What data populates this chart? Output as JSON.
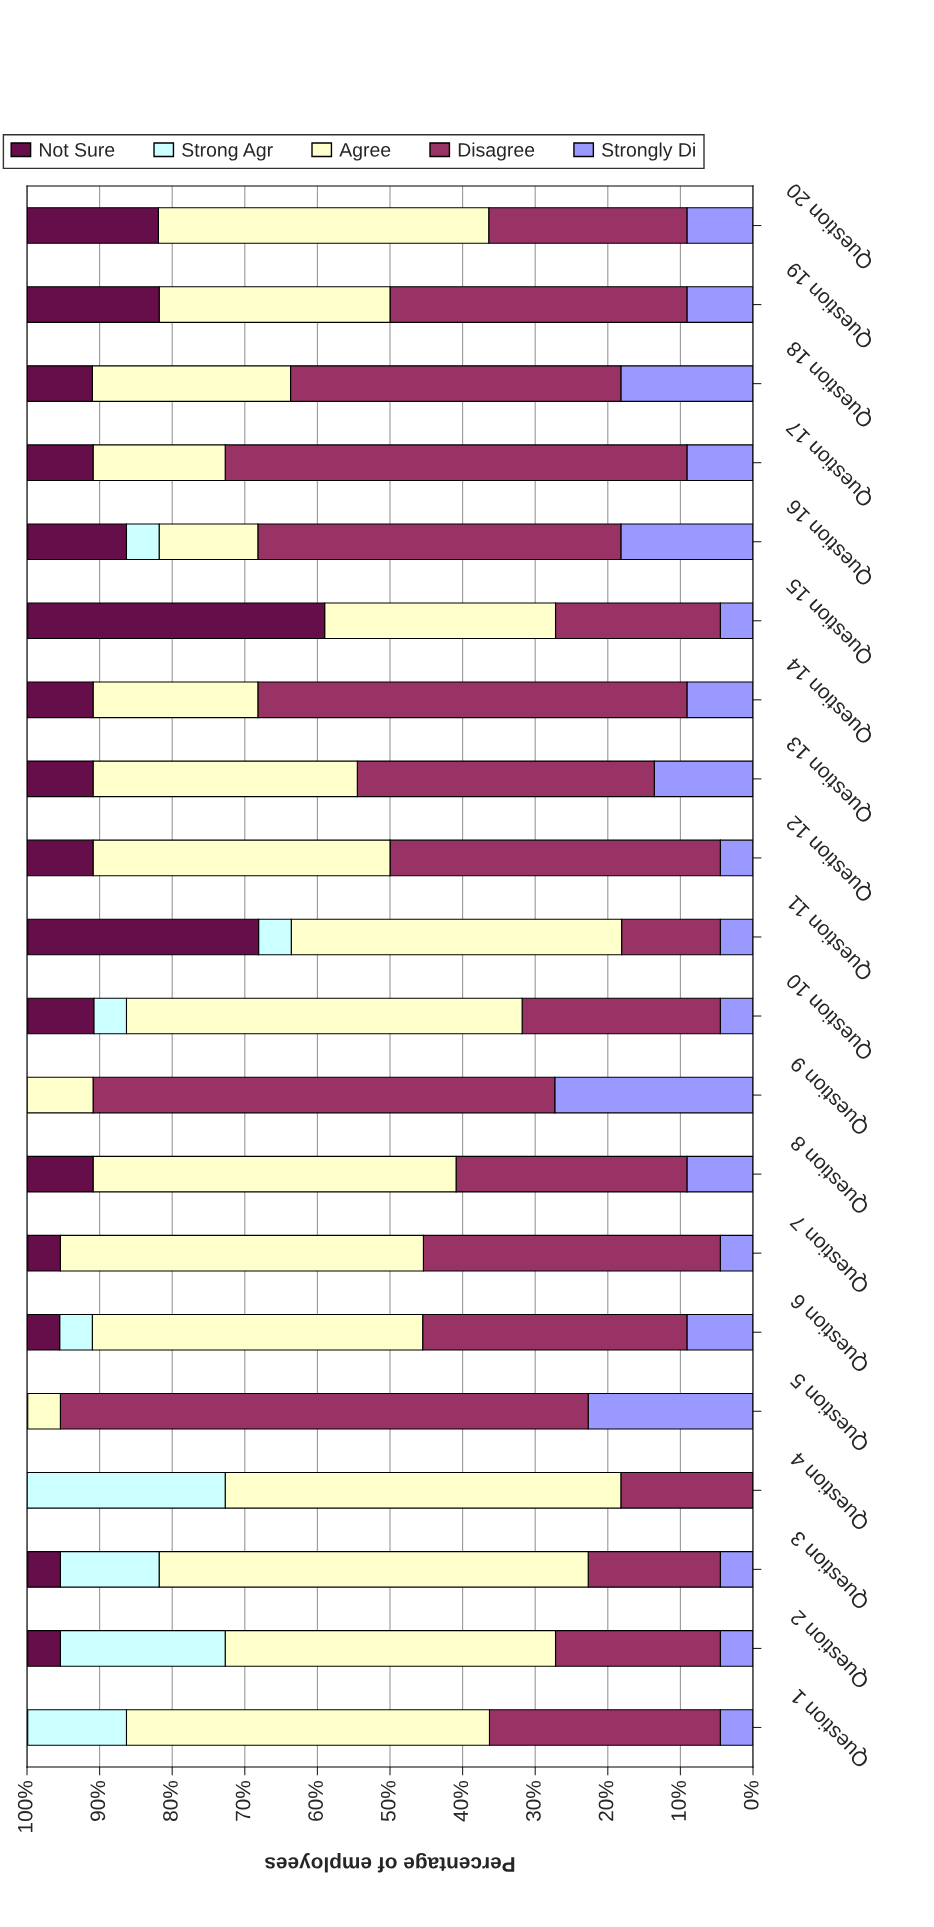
{
  "chart_data": {
    "type": "bar",
    "orientation": "horizontal",
    "stacked": true,
    "xlabel": "Percentage of employees",
    "categories": [
      "Question 20",
      "Question 19",
      "Question 18",
      "Question 17",
      "Question 16",
      "Question 15",
      "Question 14",
      "Question 13",
      "Question 12",
      "Question 11",
      "Question 10",
      "Question 9",
      "Question 8",
      "Question 7",
      "Question 6",
      "Question 5",
      "Question 4",
      "Question 3",
      "Question 2",
      "Question 1"
    ],
    "series": [
      {
        "name": "Strongly Di",
        "color": "#9999ff",
        "values": [
          9.1,
          9.1,
          18.2,
          9.1,
          18.2,
          4.5,
          9.1,
          13.6,
          4.5,
          4.5,
          4.5,
          27.3,
          9.1,
          4.5,
          9.1,
          22.7,
          0,
          4.5,
          4.5,
          4.5
        ]
      },
      {
        "name": "Disagree",
        "color": "#993366",
        "values": [
          27.3,
          40.9,
          45.5,
          63.6,
          50,
          22.7,
          59.1,
          40.9,
          45.5,
          13.6,
          27.3,
          63.6,
          31.8,
          40.9,
          36.4,
          72.7,
          18.2,
          18.2,
          22.7,
          31.8
        ]
      },
      {
        "name": "Agree",
        "color": "#ffffcc",
        "values": [
          45.5,
          31.8,
          27.3,
          18.2,
          13.6,
          31.8,
          22.7,
          36.4,
          40.9,
          45.5,
          54.5,
          9.1,
          50,
          50,
          45.5,
          4.5,
          54.5,
          59.1,
          45.5,
          50
        ]
      },
      {
        "name": "Strong Agr",
        "color": "#ccffff",
        "values": [
          0,
          0,
          0,
          0,
          4.5,
          0,
          0,
          0,
          0,
          4.5,
          4.5,
          0,
          0,
          0,
          4.5,
          0,
          27.3,
          13.6,
          22.7,
          13.6
        ]
      },
      {
        "name": "Not Sure",
        "color": "#660e4a",
        "values": [
          18.1,
          18.2,
          9.0,
          9.1,
          13.6,
          40.9,
          9.1,
          9.1,
          9.1,
          31.8,
          9.1,
          0,
          9.1,
          4.5,
          4.5,
          0,
          0,
          4.5,
          4.5,
          0
        ]
      }
    ],
    "xlim": [
      100,
      0
    ],
    "xticks": [
      {
        "value": 100,
        "label": "100%"
      },
      {
        "value": 90,
        "label": "90%"
      },
      {
        "value": 80,
        "label": "80%"
      },
      {
        "value": 70,
        "label": "70%"
      },
      {
        "value": 60,
        "label": "60%"
      },
      {
        "value": 50,
        "label": "50%"
      },
      {
        "value": 40,
        "label": "40%"
      },
      {
        "value": 30,
        "label": "30%"
      },
      {
        "value": 20,
        "label": "20%"
      },
      {
        "value": 10,
        "label": "10%"
      },
      {
        "value": 0,
        "label": "0%"
      }
    ],
    "grid": "x",
    "legend": "top"
  }
}
